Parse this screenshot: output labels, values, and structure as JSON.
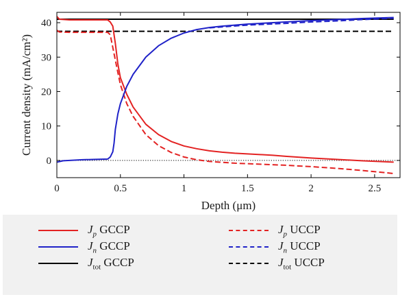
{
  "chart_data": {
    "type": "line",
    "xlabel": "Depth (μm)",
    "ylabel": "Current density (mA/cm²)",
    "xlim": [
      0,
      2.7
    ],
    "ylim": [
      -5,
      43
    ],
    "xticks": [
      "0",
      "0.5",
      "1",
      "1.5",
      "2",
      "2.5"
    ],
    "xtick_values": [
      0,
      0.5,
      1,
      1.5,
      2,
      2.5
    ],
    "yticks": [
      "0",
      "10",
      "20",
      "30",
      "40"
    ],
    "ytick_values": [
      0,
      10,
      20,
      30,
      40
    ],
    "reference_line": {
      "y": 0,
      "style": "dotted",
      "color": "#000000"
    },
    "series": [
      {
        "key": "jp_gccp",
        "color": "#e32222",
        "dash": "solid",
        "x": [
          0,
          0.02,
          0.1,
          0.3,
          0.4,
          0.42,
          0.44,
          0.46,
          0.48,
          0.5,
          0.55,
          0.6,
          0.7,
          0.8,
          0.9,
          1.0,
          1.1,
          1.2,
          1.3,
          1.4,
          1.5,
          1.6,
          1.7,
          1.8,
          2.0,
          2.2,
          2.4,
          2.65
        ],
        "y": [
          41.8,
          41.0,
          40.8,
          40.8,
          40.8,
          40.2,
          39.0,
          34.0,
          28.0,
          24.0,
          19.2,
          15.5,
          10.5,
          7.5,
          5.5,
          4.2,
          3.4,
          2.8,
          2.4,
          2.1,
          1.9,
          1.7,
          1.5,
          1.2,
          0.7,
          0.3,
          -0.1,
          -0.5
        ]
      },
      {
        "key": "jn_gccp",
        "color": "#1f22c8",
        "dash": "solid",
        "x": [
          0,
          0.05,
          0.1,
          0.2,
          0.3,
          0.4,
          0.42,
          0.44,
          0.45,
          0.46,
          0.48,
          0.5,
          0.55,
          0.6,
          0.7,
          0.8,
          0.9,
          1.0,
          1.1,
          1.2,
          1.3,
          1.5,
          1.8,
          2.0,
          2.2,
          2.4,
          2.65
        ],
        "y": [
          -0.5,
          -0.1,
          0,
          0.2,
          0.3,
          0.4,
          1.0,
          2.5,
          5.0,
          9.0,
          13.5,
          16.5,
          21.5,
          25.0,
          30.0,
          33.3,
          35.5,
          37.0,
          38.0,
          38.6,
          39.0,
          39.6,
          40.2,
          40.6,
          40.9,
          41.2,
          41.5
        ]
      },
      {
        "key": "jtot_gccp",
        "color": "#000000",
        "dash": "solid",
        "x": [
          0,
          2.65
        ],
        "y": [
          41.0,
          41.0
        ]
      },
      {
        "key": "jp_uccp",
        "color": "#e32222",
        "dash": "dashed",
        "x": [
          0,
          0.02,
          0.1,
          0.3,
          0.4,
          0.42,
          0.45,
          0.48,
          0.5,
          0.55,
          0.6,
          0.7,
          0.8,
          0.9,
          1.0,
          1.1,
          1.2,
          1.4,
          1.6,
          1.8,
          2.0,
          2.2,
          2.4,
          2.65
        ],
        "y": [
          37.8,
          37.3,
          37.2,
          37.2,
          37.2,
          36.5,
          31.0,
          25.5,
          22.0,
          16.5,
          12.8,
          7.5,
          4.3,
          2.3,
          1.0,
          0.2,
          -0.3,
          -0.8,
          -1.1,
          -1.4,
          -1.8,
          -2.3,
          -2.9,
          -3.8
        ]
      },
      {
        "key": "jn_uccp",
        "color": "#1f22c8",
        "dash": "dashed",
        "x": [
          1.2,
          1.5,
          1.8,
          2.0,
          2.2,
          2.4,
          2.65
        ],
        "y": [
          38.5,
          39.3,
          39.8,
          40.2,
          40.5,
          40.9,
          41.3
        ]
      },
      {
        "key": "jtot_uccp",
        "color": "#000000",
        "dash": "dashed",
        "x": [
          0,
          2.65
        ],
        "y": [
          37.5,
          37.5
        ]
      }
    ]
  },
  "legend": {
    "items": [
      {
        "key": "jp_gccp",
        "color": "#e32222",
        "dash": "solid",
        "sym": "J",
        "sub": "p",
        "sub_italic": true,
        "label": "GCCP"
      },
      {
        "key": "jn_gccp",
        "color": "#1f22c8",
        "dash": "solid",
        "sym": "J",
        "sub": "n",
        "sub_italic": true,
        "label": "GCCP"
      },
      {
        "key": "jtot_gccp",
        "color": "#000000",
        "dash": "solid",
        "sym": "J",
        "sub": "tot",
        "sub_italic": false,
        "label": "GCCP"
      },
      {
        "key": "jp_uccp",
        "color": "#e32222",
        "dash": "dashed",
        "sym": "J",
        "sub": "p",
        "sub_italic": true,
        "label": "UCCP"
      },
      {
        "key": "jn_uccp",
        "color": "#1f22c8",
        "dash": "dashed",
        "sym": "J",
        "sub": "n",
        "sub_italic": true,
        "label": "UCCP"
      },
      {
        "key": "jtot_uccp",
        "color": "#000000",
        "dash": "dashed",
        "sym": "J",
        "sub": "tot",
        "sub_italic": false,
        "label": "UCCP"
      }
    ]
  }
}
